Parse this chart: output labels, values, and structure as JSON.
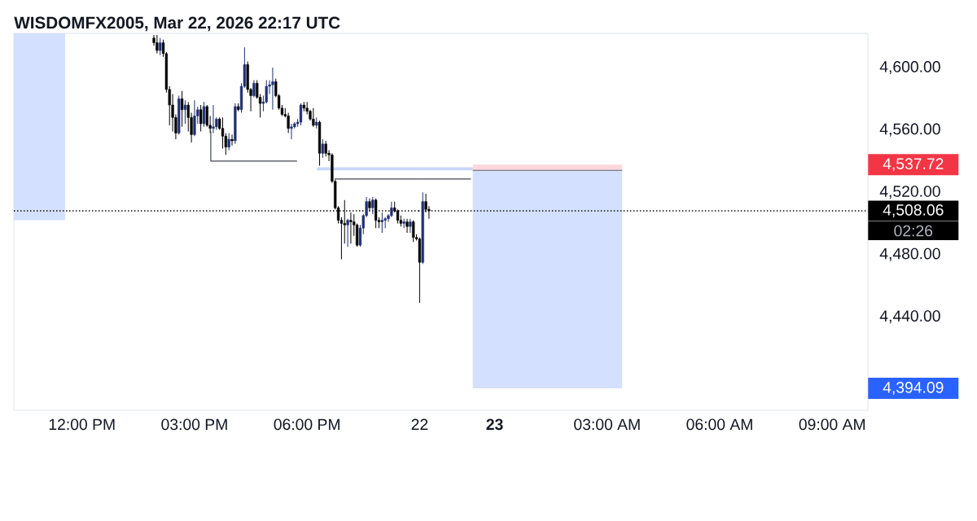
{
  "chart_data": [
    {
      "type": "candlestick",
      "title": "WISDOMFX2005, Mar 22, 2026 22:17 UTC",
      "x": [
        "2026-03-20T13:55",
        "2026-03-20T14:00",
        "2026-03-20T14:05",
        "2026-03-20T14:10",
        "2026-03-20T14:15",
        "2026-03-20T14:20",
        "2026-03-20T14:25",
        "2026-03-20T14:30",
        "2026-03-20T14:35",
        "2026-03-20T14:40",
        "2026-03-20T14:45",
        "2026-03-20T14:50",
        "2026-03-20T14:55",
        "2026-03-20T15:00",
        "2026-03-20T15:05",
        "2026-03-20T15:10",
        "2026-03-20T15:15",
        "2026-03-20T15:20",
        "2026-03-20T15:25",
        "2026-03-20T15:30",
        "2026-03-20T15:35",
        "2026-03-20T15:40",
        "2026-03-20T15:45",
        "2026-03-20T15:50",
        "2026-03-20T15:55",
        "2026-03-20T16:00",
        "2026-03-20T16:05",
        "2026-03-20T16:10",
        "2026-03-20T16:15",
        "2026-03-20T16:20",
        "2026-03-20T16:25",
        "2026-03-20T16:30",
        "2026-03-20T16:35",
        "2026-03-20T16:40",
        "2026-03-20T16:45",
        "2026-03-20T16:50",
        "2026-03-20T16:55",
        "2026-03-20T17:00",
        "2026-03-20T17:05",
        "2026-03-20T17:10",
        "2026-03-20T17:15",
        "2026-03-20T17:20",
        "2026-03-20T17:25",
        "2026-03-20T17:30",
        "2026-03-20T17:35",
        "2026-03-20T17:40",
        "2026-03-20T17:45",
        "2026-03-20T17:50",
        "2026-03-20T17:55",
        "2026-03-20T18:00",
        "2026-03-20T18:05",
        "2026-03-20T18:10",
        "2026-03-20T18:15",
        "2026-03-20T18:20",
        "2026-03-20T18:25",
        "2026-03-20T18:30",
        "2026-03-20T18:35",
        "2026-03-20T18:40",
        "2026-03-20T18:45",
        "2026-03-20T18:50",
        "2026-03-20T18:55",
        "2026-03-20T19:00",
        "2026-03-20T19:05",
        "2026-03-20T19:10",
        "2026-03-20T19:15",
        "2026-03-20T19:20",
        "2026-03-20T19:25",
        "2026-03-20T19:30",
        "2026-03-20T19:35",
        "2026-03-20T19:40",
        "2026-03-20T19:45",
        "2026-03-20T19:50",
        "2026-03-20T19:55",
        "2026-03-20T20:00",
        "2026-03-20T20:05",
        "2026-03-20T20:10",
        "2026-03-20T20:15",
        "2026-03-20T20:20",
        "2026-03-20T20:25",
        "2026-03-20T20:30",
        "2026-03-20T20:35",
        "2026-03-20T20:40",
        "2026-03-20T20:45",
        "2026-03-20T20:50",
        "2026-03-20T20:55"
      ],
      "ohlc": [
        [
          4619,
          4621,
          4614,
          4616
        ],
        [
          4616,
          4621,
          4609,
          4611
        ],
        [
          4611,
          4619,
          4608,
          4616
        ],
        [
          4616,
          4618,
          4607,
          4609
        ],
        [
          4609,
          4610,
          4584,
          4586
        ],
        [
          4586,
          4588,
          4563,
          4576
        ],
        [
          4576,
          4583,
          4559,
          4568
        ],
        [
          4568,
          4570,
          4554,
          4558
        ],
        [
          4558,
          4582,
          4557,
          4580
        ],
        [
          4580,
          4585,
          4562,
          4573
        ],
        [
          4573,
          4579,
          4564,
          4576
        ],
        [
          4576,
          4578,
          4559,
          4568
        ],
        [
          4568,
          4571,
          4552,
          4557
        ],
        [
          4557,
          4579,
          4556,
          4569
        ],
        [
          4569,
          4575,
          4564,
          4573
        ],
        [
          4573,
          4576,
          4559,
          4564
        ],
        [
          4564,
          4578,
          4562,
          4575
        ],
        [
          4575,
          4576,
          4562,
          4563
        ],
        [
          4563,
          4569,
          4558,
          4561
        ],
        [
          4561,
          4576,
          4558,
          4562
        ],
        [
          4562,
          4568,
          4560,
          4567
        ],
        [
          4567,
          4568,
          4560,
          4561
        ],
        [
          4561,
          4568,
          4548,
          4556
        ],
        [
          4556,
          4558,
          4544,
          4549
        ],
        [
          4549,
          4558,
          4547,
          4554
        ],
        [
          4554,
          4557,
          4550,
          4553
        ],
        [
          4553,
          4577,
          4551,
          4575
        ],
        [
          4575,
          4577,
          4572,
          4573
        ],
        [
          4573,
          4590,
          4571,
          4588
        ],
        [
          4588,
          4613,
          4587,
          4602
        ],
        [
          4602,
          4604,
          4584,
          4586
        ],
        [
          4586,
          4587,
          4572,
          4582
        ],
        [
          4582,
          4592,
          4581,
          4590
        ],
        [
          4590,
          4592,
          4580,
          4581
        ],
        [
          4581,
          4583,
          4568,
          4577
        ],
        [
          4577,
          4582,
          4572,
          4578
        ],
        [
          4578,
          4592,
          4577,
          4588
        ],
        [
          4588,
          4592,
          4583,
          4589
        ],
        [
          4589,
          4600,
          4573,
          4591
        ],
        [
          4591,
          4593,
          4581,
          4582
        ],
        [
          4582,
          4583,
          4573,
          4574
        ],
        [
          4574,
          4576,
          4569,
          4570
        ],
        [
          4570,
          4574,
          4568,
          4569
        ],
        [
          4569,
          4571,
          4558,
          4561
        ],
        [
          4561,
          4564,
          4554,
          4562
        ],
        [
          4562,
          4565,
          4561,
          4564
        ],
        [
          4564,
          4567,
          4562,
          4565
        ],
        [
          4565,
          4577,
          4563,
          4576
        ],
        [
          4576,
          4578,
          4572,
          4574
        ],
        [
          4574,
          4578,
          4570,
          4572
        ],
        [
          4572,
          4573,
          4566,
          4567
        ],
        [
          4567,
          4574,
          4562,
          4563
        ],
        [
          4563,
          4568,
          4561,
          4565
        ],
        [
          4565,
          4566,
          4537,
          4545
        ],
        [
          4545,
          4554,
          4542,
          4551
        ],
        [
          4551,
          4553,
          4543,
          4545
        ],
        [
          4545,
          4547,
          4540,
          4544
        ],
        [
          4544,
          4545,
          4526,
          4527
        ],
        [
          4527,
          4528,
          4509,
          4510
        ],
        [
          4510,
          4511,
          4500,
          4502
        ],
        [
          4502,
          4504,
          4477,
          4500
        ],
        [
          4500,
          4515,
          4487,
          4499
        ],
        [
          4499,
          4503,
          4485,
          4502
        ],
        [
          4502,
          4507,
          4487,
          4501
        ],
        [
          4501,
          4506,
          4492,
          4499
        ],
        [
          4499,
          4500,
          4485,
          4486
        ],
        [
          4486,
          4499,
          4485,
          4497
        ],
        [
          4497,
          4506,
          4493,
          4505
        ],
        [
          4505,
          4517,
          4504,
          4514
        ],
        [
          4514,
          4516,
          4508,
          4510
        ],
        [
          4510,
          4517,
          4506,
          4515
        ],
        [
          4515,
          4516,
          4497,
          4502
        ],
        [
          4502,
          4504,
          4497,
          4501
        ],
        [
          4501,
          4507,
          4494,
          4502
        ],
        [
          4502,
          4504,
          4497,
          4503
        ],
        [
          4503,
          4506,
          4501,
          4505
        ],
        [
          4505,
          4514,
          4504,
          4510
        ],
        [
          4510,
          4514,
          4507,
          4508
        ],
        [
          4508,
          4509,
          4500,
          4502
        ],
        [
          4502,
          4505,
          4498,
          4500
        ],
        [
          4500,
          4503,
          4497,
          4501
        ],
        [
          4501,
          4503,
          4494,
          4498
        ],
        [
          4498,
          4503,
          4494,
          4501
        ],
        [
          4501,
          4502,
          4488,
          4491
        ],
        [
          4491,
          4493,
          4489,
          4490
        ]
      ],
      "colors": [
        "#000000",
        "#000000",
        "#1f2f74",
        "#000000",
        "#000000",
        "#000000",
        "#000000",
        "#000000",
        "#1f2f74",
        "#000000",
        "#1f2f74",
        "#000000",
        "#000000",
        "#1f2f74",
        "#1f2f74",
        "#000000",
        "#1f2f74",
        "#000000",
        "#000000",
        "#1f2f74",
        "#1f2f74",
        "#000000",
        "#000000",
        "#000000",
        "#1f2f74",
        "#000000",
        "#1f2f74",
        "#000000",
        "#1f2f74",
        "#1f2f74",
        "#000000",
        "#000000",
        "#1f2f74",
        "#000000",
        "#000000",
        "#1f2f74",
        "#1f2f74",
        "#1f2f74",
        "#1f2f74",
        "#000000",
        "#000000",
        "#000000",
        "#000000",
        "#000000",
        "#1f2f74",
        "#1f2f74",
        "#1f2f74",
        "#1f2f74",
        "#000000",
        "#000000",
        "#000000",
        "#000000",
        "#1f2f74",
        "#000000",
        "#1f2f74",
        "#000000",
        "#000000",
        "#000000",
        "#000000",
        "#000000",
        "#000000",
        "#000000",
        "#1f2f74",
        "#000000",
        "#000000",
        "#000000",
        "#1f2f74",
        "#1f2f74",
        "#1f2f74",
        "#000000",
        "#1f2f74",
        "#000000",
        "#000000",
        "#1f2f74",
        "#1f2f74",
        "#1f2f74",
        "#1f2f74",
        "#000000",
        "#000000",
        "#000000",
        "#1f2f74",
        "#000000",
        "#1f2f74",
        "#000000",
        "#000000"
      ],
      "series": [
        {
          "type": "line",
          "color": "#d4e0ff",
          "x": [
            "2026-03-20T10:11",
            "2026-03-20T11:33"
          ],
          "values": [
            null,
            null
          ],
          "lower": [
            4502,
            4502
          ],
          "upper": [
            4622,
            4622
          ]
        },
        {
          "type": "line",
          "color": "#434651",
          "x": [
            "2026-03-20T15:26",
            "2026-03-20T15:26",
            "2026-03-20T17:44"
          ],
          "values": [
            4559,
            4540,
            4540
          ]
        },
        {
          "type": "line",
          "color": "#c8d6fa",
          "x": [
            "2026-03-20T18:16",
            "2026-03-20T20:58"
          ],
          "values": [
            null,
            null
          ],
          "lower": [
            4534,
            4534
          ],
          "upper": [
            4536,
            4536
          ]
        },
        {
          "type": "line",
          "color": "#434651",
          "x": [
            "2026-03-20T18:44",
            "2026-03-20T20:58"
          ],
          "values": [
            4528.5,
            4528.5
          ]
        }
      ],
      "xlim": [
        "2026-03-20T10:11",
        "2026-03-20T20:58"
      ],
      "xticks": [
        {
          "value": "2026-03-20T12:00",
          "label": "12:00 PM"
        },
        {
          "value": "2026-03-20T15:00",
          "label": "03:00 PM"
        },
        {
          "value": "2026-03-20T18:00",
          "label": "06:00 PM"
        }
      ],
      "ylim": [
        4380,
        4622
      ],
      "tick_labels": "x",
      "ref_lines": [
        {
          "axis": "y",
          "value": 4508.06,
          "color": "#000000",
          "line_style": "dotted"
        }
      ]
    },
    {
      "type": "candlestick",
      "x": [
        "2026-03-22T22:00",
        "2026-03-22T22:05",
        "2026-03-22T22:10",
        "2026-03-22T22:15"
      ],
      "ohlc": [
        [
          4490,
          4491,
          4449,
          4475
        ],
        [
          4475,
          4520,
          4474,
          4514
        ],
        [
          4514,
          4519,
          4507,
          4509
        ],
        [
          4509,
          4511,
          4503,
          4508.06
        ]
      ],
      "colors": [
        "#000000",
        "#1f2f74",
        "#000000",
        "#000000"
      ],
      "series": [
        {
          "type": "line",
          "color": "#c8d6fa",
          "x": [
            "2026-03-22T21:58",
            "2026-03-22T23:25"
          ],
          "values": [
            null,
            null
          ],
          "lower": [
            4534,
            4534
          ],
          "upper": [
            4536,
            4536
          ]
        },
        {
          "type": "line",
          "color": "#434651",
          "x": [
            "2026-03-22T21:58",
            "2026-03-22T23:22"
          ],
          "values": [
            4528.5,
            4528.5
          ]
        },
        {
          "type": "line",
          "color": "#fcd7da",
          "x": [
            "2026-03-22T23:25",
            "2026-03-23T03:24"
          ],
          "values": [
            null,
            null
          ],
          "lower": [
            4534,
            4534
          ],
          "upper": [
            4537.72,
            4537.72
          ]
        },
        {
          "type": "line",
          "color": "#d4e0ff",
          "x": [
            "2026-03-22T23:25",
            "2026-03-23T03:24"
          ],
          "values": [
            null,
            null
          ],
          "lower": [
            4394.09,
            4394.09
          ],
          "upper": [
            4534,
            4534
          ]
        },
        {
          "type": "line",
          "color": "#787b86",
          "x": [
            "2026-03-22T23:25",
            "2026-03-23T03:24"
          ],
          "values": [
            4534,
            4534
          ]
        }
      ],
      "xlim": [
        "2026-03-22T21:58",
        "2026-03-23T09:57"
      ],
      "xticks": [
        {
          "value": "2026-03-22T22:00",
          "label": "22"
        },
        {
          "value": "2026-03-23T00:00",
          "label": "**23**"
        },
        {
          "value": "2026-03-23T03:00",
          "label": "03:00 AM"
        },
        {
          "value": "2026-03-23T06:00",
          "label": "06:00 AM"
        },
        {
          "value": "2026-03-23T09:00",
          "label": "09:00 AM"
        }
      ],
      "ylim": [
        4380,
        4622
      ],
      "yticks": [
        {
          "value": 4394.09,
          "label": "4,394.09"
        },
        {
          "value": 4440,
          "label": "4,440.00"
        },
        {
          "value": 4480,
          "label": "4,480.00"
        },
        {
          "value": 4520,
          "label": "4,520.00"
        },
        {
          "value": 4537.72,
          "label": "4,537.72"
        },
        {
          "value": 4560,
          "label": "4,560.00"
        },
        {
          "value": 4600,
          "label": "4,600.00"
        }
      ],
      "ref_lines": [
        {
          "axis": "y",
          "value": 4508.06,
          "label": "4,508.06",
          "color": "#000000",
          "line_style": "dotted"
        }
      ],
      "annotations": [
        "02:26"
      ]
    }
  ]
}
